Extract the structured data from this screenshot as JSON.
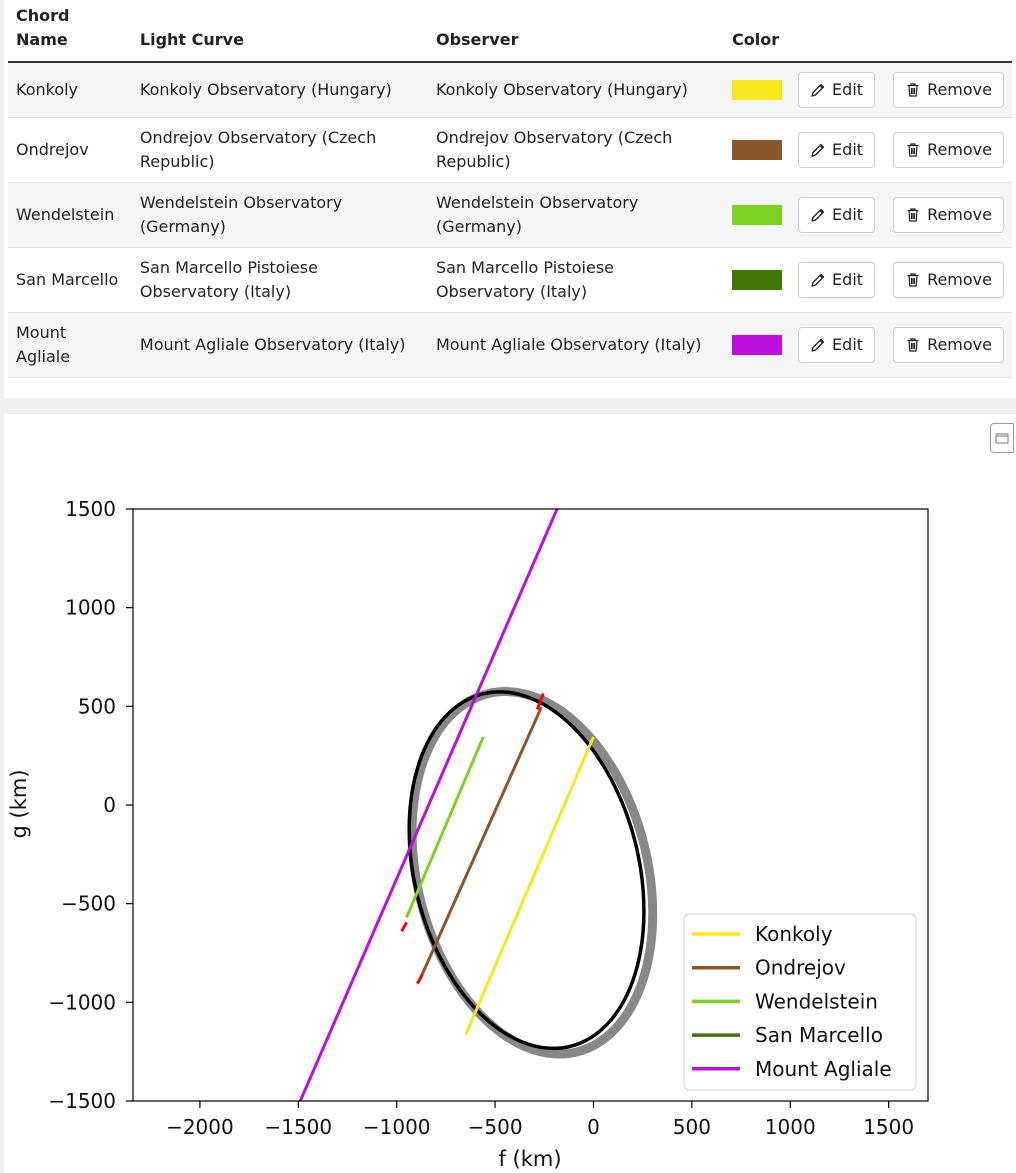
{
  "table": {
    "headers": {
      "chord_name": "Chord\nName",
      "light_curve": "Light Curve",
      "observer": "Observer",
      "color": "Color"
    },
    "rows": [
      {
        "name": "Konkoly",
        "light_curve": "Konkoly Observatory (Hungary)",
        "observer": "Konkoly Observatory (Hungary)",
        "color": "#f8e71c"
      },
      {
        "name": "Ondrejov",
        "light_curve": "Ondrejov Observatory (Czech Republic)",
        "observer": "Ondrejov Observatory (Czech Republic)",
        "color": "#8b572a"
      },
      {
        "name": "Wendelstein",
        "light_curve": "Wendelstein Observatory (Germany)",
        "observer": "Wendelstein Observatory (Germany)",
        "color": "#7ed321"
      },
      {
        "name": "San Marcello",
        "light_curve": "San Marcello Pistoiese Observatory (Italy)",
        "observer": "San Marcello Pistoiese Observatory (Italy)",
        "color": "#417505"
      },
      {
        "name": "Mount Agliale",
        "light_curve": "Mount Agliale Observatory (Italy)",
        "observer": "Mount Agliale Observatory (Italy)",
        "color": "#bd10e0"
      }
    ],
    "edit_label": "Edit",
    "remove_label": "Remove"
  },
  "chart_data": {
    "type": "line",
    "xlabel": "f (km)",
    "ylabel": "g (km)",
    "xlim": [
      -2340,
      1700
    ],
    "ylim": [
      -1500,
      1500
    ],
    "xticks": [
      -2000,
      -1500,
      -1000,
      -500,
      0,
      500,
      1000,
      1500
    ],
    "yticks": [
      -1500,
      -1000,
      -500,
      0,
      500,
      1000,
      1500
    ],
    "xtick_labels": [
      "−2000",
      "−1500",
      "−1000",
      "−500",
      "0",
      "500",
      "1000",
      "1500"
    ],
    "ytick_labels": [
      "−1500",
      "−1000",
      "−500",
      "0",
      "500",
      "1000",
      "1500"
    ],
    "legend_position": "lower-right",
    "ellipse": {
      "center": [
        -340,
        -330
      ],
      "semi_axes": [
        570,
        920
      ],
      "color": "#000000",
      "uncertainty_color": "#888888"
    },
    "series": [
      {
        "name": "Konkoly",
        "color": "#f8e71c",
        "x": [
          -650,
          0
        ],
        "y": [
          -1165,
          345
        ]
      },
      {
        "name": "Ondrejov",
        "color": "#8b572a",
        "x": [
          -880,
          -265
        ],
        "y": [
          -880,
          495
        ]
      },
      {
        "name": "Wendelstein",
        "color": "#7ed321",
        "x": [
          -950,
          -560
        ],
        "y": [
          -570,
          345
        ]
      },
      {
        "name": "San Marcello",
        "color": "#417505",
        "x": [],
        "y": []
      },
      {
        "name": "Mount Agliale",
        "color": "#bd10e0",
        "x": [
          -1490,
          -185
        ],
        "y": [
          -1500,
          1500
        ]
      }
    ],
    "error_bars": [
      {
        "color": "#ff0000",
        "x": [
          -285,
          -255
        ],
        "y": [
          485,
          565
        ]
      },
      {
        "color": "#ff0000",
        "x": [
          -895,
          -870
        ],
        "y": [
          -905,
          -860
        ]
      },
      {
        "color": "#ff0000",
        "x": [
          -975,
          -950
        ],
        "y": [
          -640,
          -595
        ]
      }
    ]
  }
}
